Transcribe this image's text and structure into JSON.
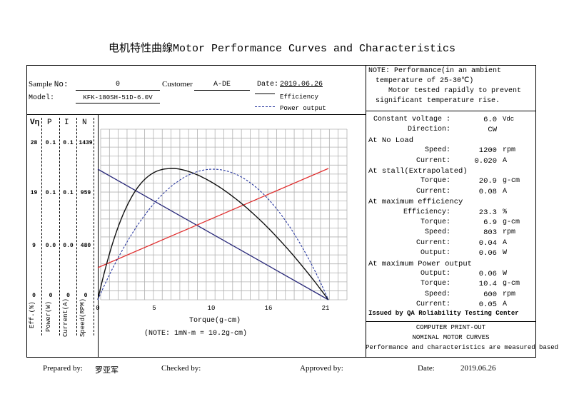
{
  "title": "电机特性曲線Motor Performance Curves and Characteristics",
  "sample": {
    "label": "Sample",
    "label2": "No:",
    "value": "0"
  },
  "customer": {
    "label": "Customer",
    "value": "A-DE"
  },
  "date_top": {
    "label": "Date:",
    "value": "2019.06.26"
  },
  "model": {
    "label": "Model:",
    "value": "KFK-180SH-51D-6.0V"
  },
  "legend": {
    "efficiency": "Efficiency",
    "power": "Power output"
  },
  "note": {
    "line1": "NOTE:  Performance(in an ambient",
    "line2": "temperature of 25-30℃)",
    "line3": "Motor tested rapidly to prevent",
    "line4": "significant temperature rise."
  },
  "axis_headers": {
    "eff": "Vη",
    "power": "P",
    "current": "I",
    "speed": "N"
  },
  "axis_ticks": {
    "eff": [
      "28",
      "19",
      "9",
      "0"
    ],
    "power": [
      "0.1",
      "0.1",
      "0.0",
      "0"
    ],
    "current": [
      "0.1",
      "0.1",
      "0.0",
      "0"
    ],
    "speed": [
      "1439",
      "959",
      "480",
      "0"
    ]
  },
  "axis_names": {
    "eff": "Eff.(%)",
    "power": "Power(W)",
    "current": "Current(A)",
    "speed": "Speed(RPM)"
  },
  "chart_data": {
    "type": "line",
    "xlabel": "Torque(g-cm)",
    "x_ticks": [
      "0",
      "5",
      "10",
      "16",
      "21"
    ],
    "xlim": [
      0,
      20.9
    ],
    "note": "(NOTE: 1mN-m = 10.2g-cm)",
    "series": [
      {
        "name": "Speed",
        "color": "#2a2a7a",
        "style": "solid",
        "x": [
          0,
          20.9
        ],
        "y": [
          1200,
          0
        ]
      },
      {
        "name": "Current",
        "color": "#e03030",
        "style": "solid",
        "x": [
          0,
          20.9
        ],
        "y": [
          0.02,
          0.08
        ]
      },
      {
        "name": "Efficiency",
        "color": "#111111",
        "style": "solid",
        "peak_x": 6.9,
        "peak_y": 23.3
      },
      {
        "name": "Power output",
        "color": "#2b3aa0",
        "style": "dashed",
        "peak_x": 10.4,
        "peak_y": 0.06
      }
    ]
  },
  "specs": {
    "constant_voltage": {
      "label": "Constant voltage :",
      "value": "6.0",
      "unit": "Vdc"
    },
    "direction": {
      "label": "Direction:",
      "value": "CW"
    },
    "no_load": {
      "header": "At No Load",
      "speed": {
        "label": "Speed:",
        "value": "1200",
        "unit": "rpm"
      },
      "current": {
        "label": "Current:",
        "value": "0.020",
        "unit": "A"
      }
    },
    "stall": {
      "header": "At stall(Extrapolated)",
      "torque": {
        "label": "Torque:",
        "value": "20.9",
        "unit": "g-cm"
      },
      "current": {
        "label": "Current:",
        "value": "0.08",
        "unit": "A"
      }
    },
    "max_eff": {
      "header": "At maximum efficiency",
      "efficiency": {
        "label": "Efficiency:",
        "value": "23.3",
        "unit": "%"
      },
      "torque": {
        "label": "Torque:",
        "value": "6.9",
        "unit": "g-cm"
      },
      "speed": {
        "label": "Speed:",
        "value": "803",
        "unit": "rpm"
      },
      "current": {
        "label": "Current:",
        "value": "0.04",
        "unit": "A"
      },
      "output": {
        "label": "Output:",
        "value": "0.06",
        "unit": "W"
      }
    },
    "max_power": {
      "header": "At maximum Power output",
      "output": {
        "label": "Output:",
        "value": "0.06",
        "unit": "W"
      },
      "torque": {
        "label": "Torque:",
        "value": "10.4",
        "unit": "g-cm"
      },
      "speed": {
        "label": "Speed:",
        "value": "600",
        "unit": "rpm"
      },
      "current": {
        "label": "Current:",
        "value": "0.05",
        "unit": "A"
      }
    },
    "issued": "Issued by QA Roliability Testing Center"
  },
  "printout": {
    "line1": "COMPUTER PRINT-OUT",
    "line2": "NOMINAL MOTOR CURVES",
    "line3": "Performance and characteristics are measured based"
  },
  "footer": {
    "prepared_label": "Prepared by:",
    "prepared_value": "罗亚军",
    "checked_label": "Checked by:",
    "approved_label": "Approved by:",
    "date_label": "Date:",
    "date_value": "2019.06.26"
  }
}
